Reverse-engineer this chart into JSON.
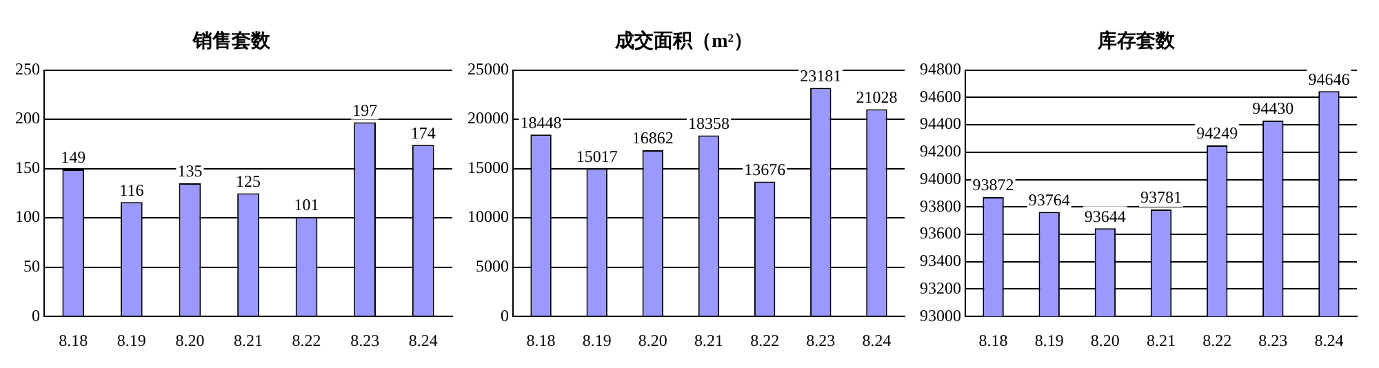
{
  "chart_data": [
    {
      "type": "bar",
      "title": "销售套数",
      "categories": [
        "8.18",
        "8.19",
        "8.20",
        "8.21",
        "8.22",
        "8.23",
        "8.24"
      ],
      "values": [
        149,
        116,
        135,
        125,
        101,
        197,
        174
      ],
      "color": "#9999ff",
      "ylim": [
        0,
        250
      ],
      "yticks": [
        0,
        50,
        100,
        150,
        200,
        250
      ],
      "grid": "y",
      "data_labels": true,
      "legend": false
    },
    {
      "type": "bar",
      "title": "成交面积（m²）",
      "categories": [
        "8.18",
        "8.19",
        "8.20",
        "8.21",
        "8.22",
        "8.23",
        "8.24"
      ],
      "values": [
        18448,
        15017,
        16862,
        18358,
        13676,
        23181,
        21028
      ],
      "color": "#9999ff",
      "ylim": [
        0,
        25000
      ],
      "yticks": [
        0,
        5000,
        10000,
        15000,
        20000,
        25000
      ],
      "grid": "y",
      "data_labels": true,
      "legend": false
    },
    {
      "type": "bar",
      "title": "库存套数",
      "categories": [
        "8.18",
        "8.19",
        "8.20",
        "8.21",
        "8.22",
        "8.23",
        "8.24"
      ],
      "values": [
        93872,
        93764,
        93644,
        93781,
        94249,
        94430,
        94646
      ],
      "color": "#9999ff",
      "ylim": [
        93000,
        94800
      ],
      "yticks": [
        93000,
        93200,
        93400,
        93600,
        93800,
        94000,
        94200,
        94400,
        94600,
        94800
      ],
      "grid": "y",
      "data_labels": true,
      "legend": false
    }
  ]
}
